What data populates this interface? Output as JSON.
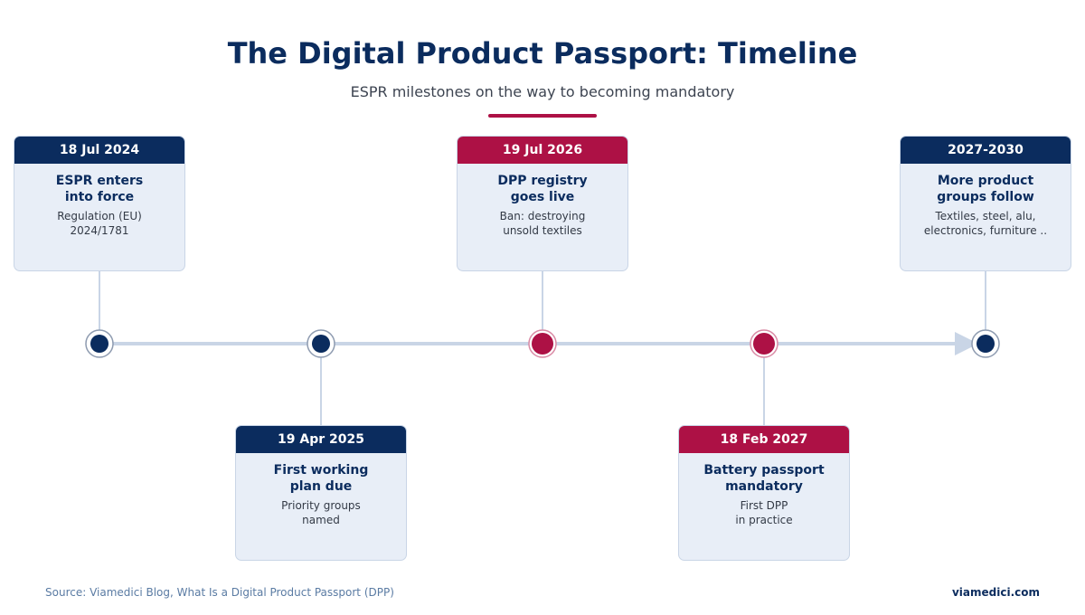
{
  "header": {
    "title": "The Digital Product Passport: Timeline",
    "subtitle": "ESPR milestones on the way to becoming mandatory"
  },
  "colors": {
    "navy": "#0b2c5e",
    "crimson": "#ad1145",
    "card_bg": "#e8eef7",
    "axis": "#c9d5e6"
  },
  "milestones": [
    {
      "date": "18 Jul 2024",
      "title": "ESPR enters\ninto force",
      "description": "Regulation (EU)\n2024/1781",
      "color": "navy",
      "placement": "above"
    },
    {
      "date": "19 Apr 2025",
      "title": "First working\nplan due",
      "description": "Priority groups\nnamed",
      "color": "navy",
      "placement": "below"
    },
    {
      "date": "19 Jul 2026",
      "title": "DPP registry\ngoes live",
      "description": "Ban: destroying\nunsold textiles",
      "color": "crimson",
      "placement": "above"
    },
    {
      "date": "18 Feb 2027",
      "title": "Battery passport\nmandatory",
      "description": "First DPP\nin practice",
      "color": "crimson",
      "placement": "below"
    },
    {
      "date": "2027-2030",
      "title": "More product\ngroups follow",
      "description": "Textiles, steel, alu,\nelectronics, furniture ..",
      "color": "navy",
      "placement": "above"
    }
  ],
  "footer": {
    "source": "Source: Viamedici Blog, What Is a Digital Product Passport (DPP)",
    "brand": "viamedici.com"
  }
}
